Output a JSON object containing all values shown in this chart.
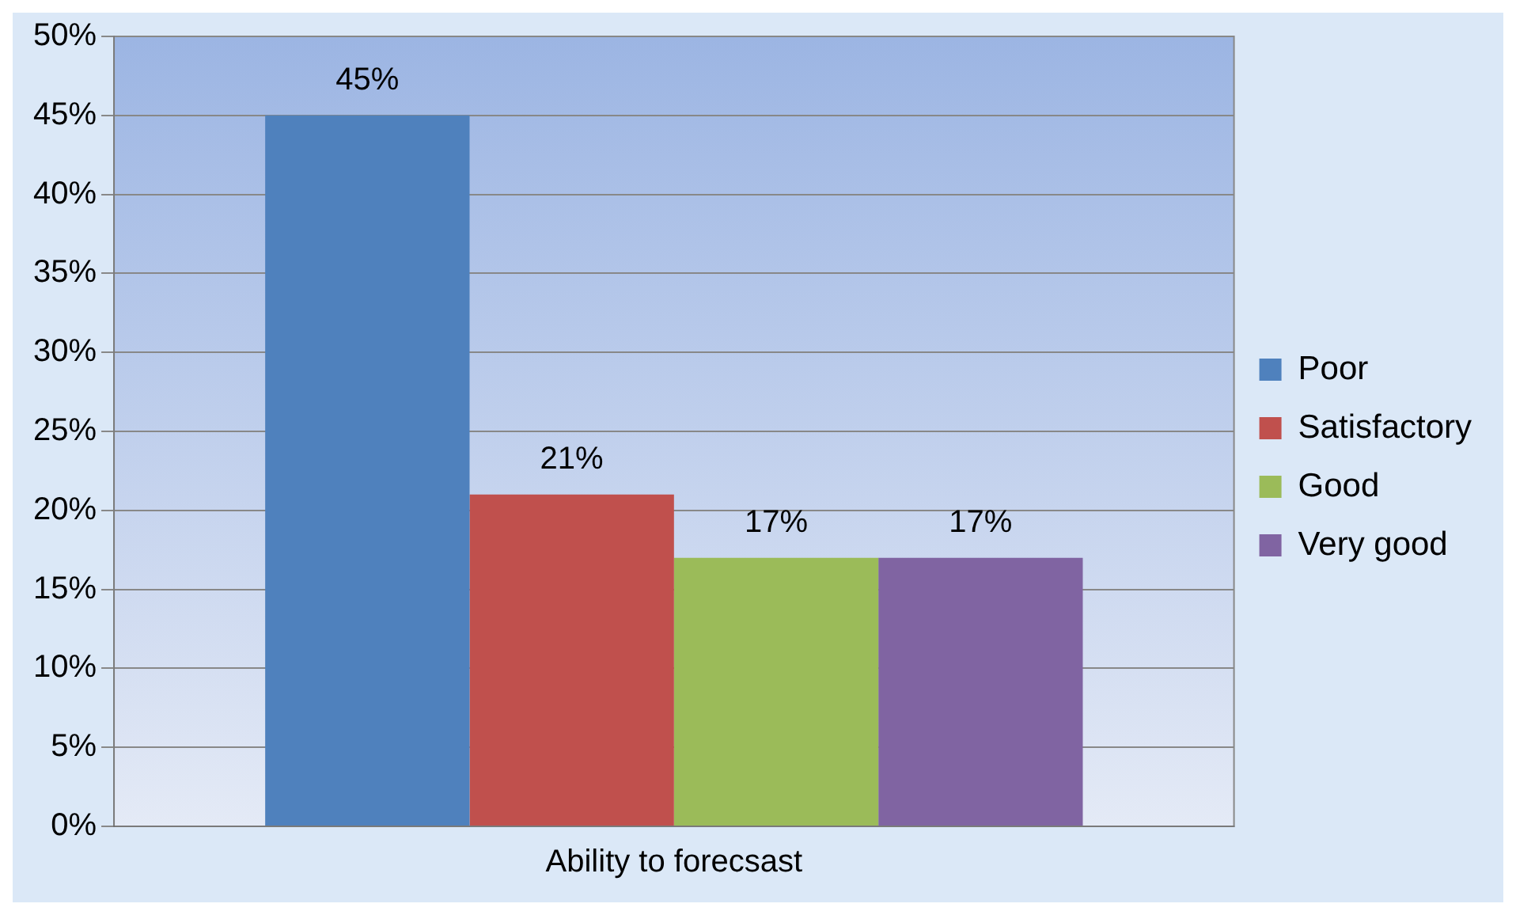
{
  "chart_data": {
    "type": "bar",
    "categories": [
      "Ability to forecsast"
    ],
    "series": [
      {
        "name": "Poor",
        "color": "#4f81bd",
        "values": [
          45
        ],
        "value_labels": [
          "45%"
        ]
      },
      {
        "name": "Satisfactory",
        "color": "#c0504d",
        "values": [
          21
        ],
        "value_labels": [
          "21%"
        ]
      },
      {
        "name": "Good",
        "color": "#9bbb59",
        "values": [
          17
        ],
        "value_labels": [
          "17%"
        ]
      },
      {
        "name": "Very good",
        "color": "#8064a2",
        "values": [
          17
        ],
        "value_labels": [
          "17%"
        ]
      }
    ],
    "ylim": [
      0,
      50
    ],
    "yticks": [
      {
        "value": 0,
        "label": "0%"
      },
      {
        "value": 5,
        "label": "5%"
      },
      {
        "value": 10,
        "label": "10%"
      },
      {
        "value": 15,
        "label": "15%"
      },
      {
        "value": 20,
        "label": "20%"
      },
      {
        "value": 25,
        "label": "25%"
      },
      {
        "value": 30,
        "label": "30%"
      },
      {
        "value": 35,
        "label": "35%"
      },
      {
        "value": 40,
        "label": "40%"
      },
      {
        "value": 45,
        "label": "45%"
      },
      {
        "value": 50,
        "label": "50%"
      }
    ],
    "grid": "y",
    "legend": "right"
  }
}
